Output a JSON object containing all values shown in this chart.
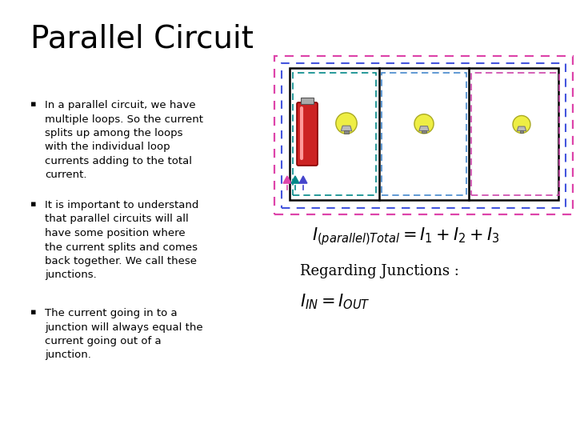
{
  "title": "Parallel Circuit",
  "title_fontsize": 28,
  "bg_color": "#ffffff",
  "bullet_points": [
    "In a parallel circuit, we have\nmultiple loops. So the current\nsplits up among the loops\nwith the individual loop\ncurrents adding to the total\ncurrent.",
    "It is important to understand\nthat parallel circuits will all\nhave some position where\nthe current splits and comes\nback together. We call these\njunctions.",
    "The current going in to a\njunction will always equal the\ncurrent going out of a\njunction."
  ],
  "bullet_fontsize": 9.5,
  "formula1": "$I_{(parallel)Total} = I_1 + I_2 + I_3$",
  "formula2": "Regarding Junctions :",
  "formula3": "$I_{IN} = I_{OUT}$",
  "formula1_fontsize": 15,
  "formula2_fontsize": 13,
  "formula3_fontsize": 15,
  "outer_dashed_pink": "#dd44aa",
  "outer_dashed_blue": "#4455dd",
  "inner_dashed_teal": "#008888",
  "inner_dashed_blue2": "#4488cc",
  "inner_dashed_pink2": "#cc44aa",
  "battery_red": "#cc2222",
  "bulb_color": "#eeee44",
  "text_color": "#000000",
  "arrow_pink": "#dd44aa",
  "arrow_teal": "#008888",
  "arrow_blue": "#4444cc"
}
